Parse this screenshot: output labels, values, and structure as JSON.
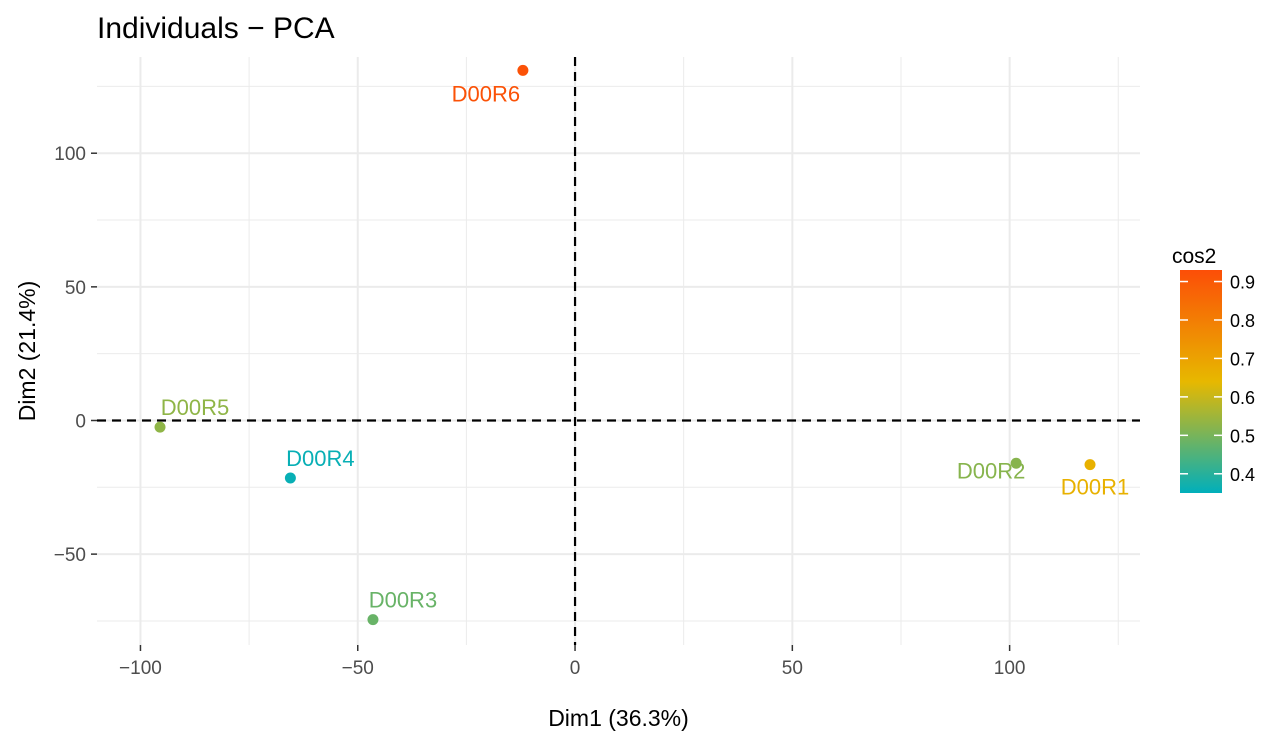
{
  "chart_data": {
    "type": "scatter",
    "title": "Individuals − PCA",
    "xlabel": "Dim1 (36.3%)",
    "ylabel": "Dim2 (21.4%)",
    "xlim": [
      -110,
      130
    ],
    "ylim": [
      -84,
      136
    ],
    "xticks": [
      -100,
      -50,
      0,
      50,
      100
    ],
    "xtick_labels": [
      "−100",
      "−50",
      "0",
      "50",
      "100"
    ],
    "yticks": [
      -50,
      0,
      50,
      100
    ],
    "ytick_labels": [
      "−50",
      "0",
      "50",
      "100"
    ],
    "grid": true,
    "reference_lines": {
      "x": 0,
      "y": 0,
      "style": "dashed"
    },
    "points": [
      {
        "label": "D00R1",
        "x": 118.5,
        "y": -16.5,
        "cos2": 0.66
      },
      {
        "label": "D00R2",
        "x": 101.5,
        "y": -16.0,
        "cos2": 0.52
      },
      {
        "label": "D00R3",
        "x": -46.5,
        "y": -74.5,
        "cos2": 0.48
      },
      {
        "label": "D00R4",
        "x": -65.5,
        "y": -21.5,
        "cos2": 0.36
      },
      {
        "label": "D00R5",
        "x": -95.5,
        "y": -2.5,
        "cos2": 0.53
      },
      {
        "label": "D00R6",
        "x": -12.0,
        "y": 131.0,
        "cos2": 0.92
      }
    ],
    "legend": {
      "title": "cos2",
      "position": "right",
      "range": [
        0.35,
        0.93
      ],
      "ticks": [
        0.4,
        0.5,
        0.6,
        0.7,
        0.8,
        0.9
      ],
      "tick_labels": [
        "0.4",
        "0.5",
        "0.6",
        "0.7",
        "0.8",
        "0.9"
      ],
      "gradient": [
        "#00AFBB",
        "#E7B800",
        "#FC4E07"
      ]
    }
  }
}
